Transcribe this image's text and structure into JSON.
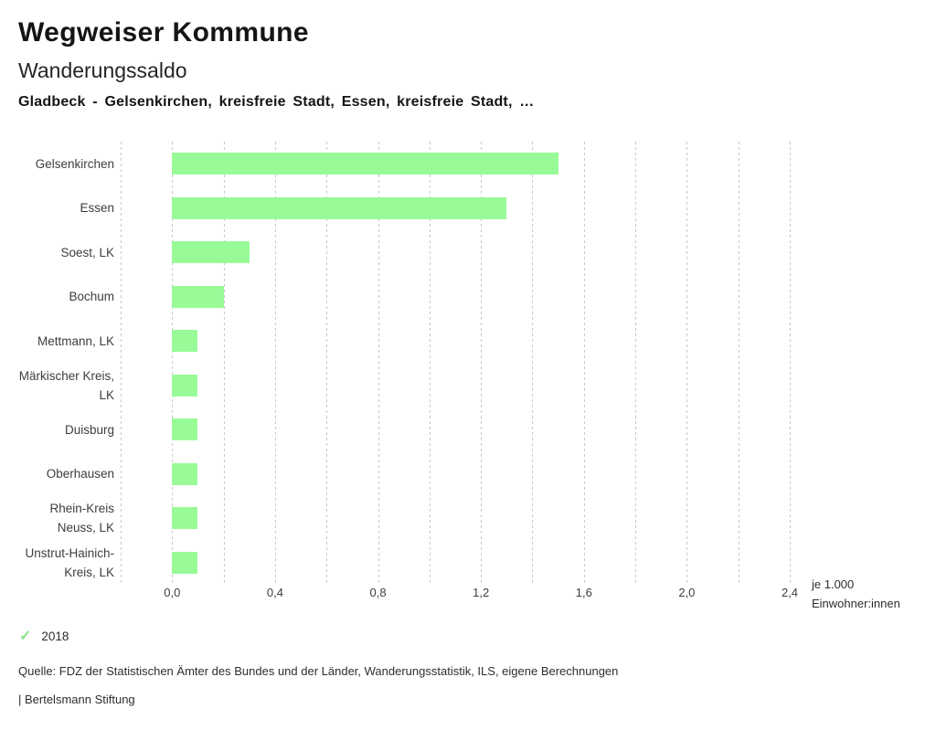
{
  "header": {
    "title": "Wegweiser Kommune",
    "subtitle": "Wanderungssaldo",
    "comparison": "Gladbeck - Gelsenkirchen, kreisfreie Stadt, Essen, kreisfreie Stadt, …"
  },
  "chart_data": {
    "type": "bar",
    "orientation": "horizontal",
    "title": "Wanderungssaldo",
    "categories": [
      "Gelsenkirchen",
      "Essen",
      "Soest, LK",
      "Bochum",
      "Mettmann, LK",
      "Märkischer Kreis, LK",
      "Duisburg",
      "Oberhausen",
      "Rhein-Kreis Neuss, LK",
      "Unstrut-Hainich-Kreis, LK"
    ],
    "values": [
      1.5,
      1.3,
      0.3,
      0.2,
      0.1,
      0.1,
      0.1,
      0.1,
      0.1,
      0.1
    ],
    "series_name": "2018",
    "xlim": [
      -0.2,
      2.4
    ],
    "gridline_step": 0.2,
    "grid": true,
    "x_ticks": [
      0.0,
      0.4,
      0.8,
      1.2,
      1.6,
      2.0,
      2.4
    ],
    "x_tick_labels": [
      "0,0",
      "0,4",
      "0,8",
      "1,2",
      "1,6",
      "2,0",
      "2,4"
    ],
    "xlabel_lines": [
      "je 1.000",
      "Einwohner:innen"
    ],
    "bar_color": "#98fb98",
    "grid_color": "#c9c9c9"
  },
  "legend": {
    "check_icon": "✓",
    "check_color": "#8ce28c",
    "year": "2018"
  },
  "footer": {
    "source": "Quelle: FDZ der Statistischen Ämter des Bundes und der Länder, Wanderungsstatistik, ILS, eigene Berechnungen",
    "attribution": "| Bertelsmann Stiftung"
  }
}
